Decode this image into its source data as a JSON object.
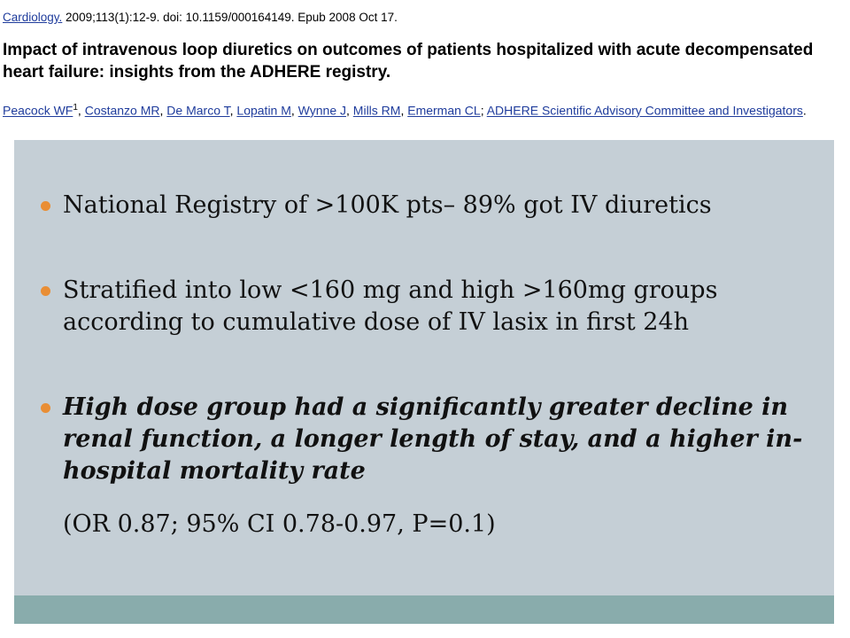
{
  "citation": {
    "journal_link": "Cardiology.",
    "journal_details": " 2009;113(1):12-9. doi: 10.1159/000164149. Epub 2008 Oct 17.",
    "title": "Impact of intravenous loop diuretics on outcomes of patients hospitalized with acute decompensated heart failure: insights from the ADHERE registry.",
    "authors": [
      "Peacock WF",
      "Costanzo MR",
      "De Marco T",
      "Lopatin M",
      "Wynne J",
      "Mills RM",
      "Emerman CL",
      "ADHERE Scientific Advisory Committee and Investigators"
    ],
    "first_author_affiliation_mark": "1",
    "author_separator": ", ",
    "group_separator": "; ",
    "end_punct": "."
  },
  "slide": {
    "bullets": [
      {
        "text": "National Registry of >100K pts– 89% got IV diuretics",
        "emphasis": false
      },
      {
        "text": "Stratified into low <160 mg and high >160mg groups according to cumulative dose of IV lasix in first 24h",
        "emphasis": false
      },
      {
        "text": "High dose group had a significantly greater decline in renal function, a longer length of stay, and a higher in-hospital mortality rate",
        "emphasis": true
      }
    ],
    "stats_note": "(OR 0.87; 95% CI 0.78-0.97, P=0.1)"
  },
  "colors": {
    "panel": "#c5cfd6",
    "footer_band": "#89acac",
    "bullet": "#e98e35",
    "link": "#1f3c9c"
  }
}
